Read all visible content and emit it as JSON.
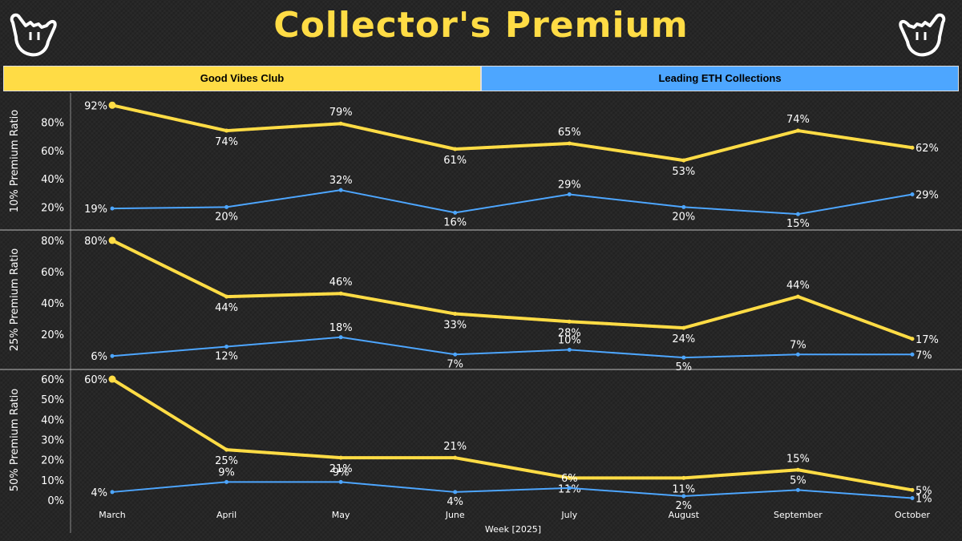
{
  "header": {
    "title": "Collector's Premium"
  },
  "icons": {
    "left": "shaka-hand-icon",
    "right": "shaka-hand-icon"
  },
  "legend": {
    "series_a": "Good Vibes Club",
    "series_b": "Leading ETH Collections"
  },
  "colors": {
    "gvc": "#ffdc45",
    "eth": "#4da6ff",
    "background": "#262626"
  },
  "chart_data": {
    "type": "line",
    "title": "Collector's Premium",
    "xlabel": "Week [2025]",
    "categories": [
      "March",
      "April",
      "May",
      "June",
      "July",
      "August",
      "September",
      "October"
    ],
    "legend_placement": "top",
    "panels": [
      {
        "ylabel": "10% Premium Ratio",
        "ylim": [
          10,
          95
        ],
        "yticks": [
          20,
          40,
          60,
          80
        ],
        "series": [
          {
            "name": "Good Vibes Club",
            "values": [
              92,
              74,
              79,
              61,
              65,
              53,
              74,
              62
            ]
          },
          {
            "name": "Leading ETH Collections",
            "values": [
              19,
              20,
              32,
              16,
              29,
              20,
              15,
              29
            ]
          }
        ]
      },
      {
        "ylabel": "25% Premium Ratio",
        "ylim": [
          2,
          82
        ],
        "yticks": [
          20,
          40,
          60,
          80
        ],
        "series": [
          {
            "name": "Good Vibes Club",
            "values": [
              80,
              44,
              46,
              33,
              28,
              24,
              44,
              17
            ]
          },
          {
            "name": "Leading ETH Collections",
            "values": [
              6,
              12,
              18,
              7,
              10,
              5,
              7,
              7
            ]
          }
        ]
      },
      {
        "ylabel": "50% Premium Ratio",
        "ylim": [
          0,
          62
        ],
        "yticks": [
          0,
          10,
          20,
          30,
          40,
          50,
          60
        ],
        "series": [
          {
            "name": "Good Vibes Club",
            "values": [
              60,
              25,
              21,
              21,
              11,
              11,
              15,
              5
            ]
          },
          {
            "name": "Leading ETH Collections",
            "values": [
              4,
              9,
              9,
              4,
              6,
              2,
              5,
              1
            ]
          }
        ]
      }
    ]
  }
}
